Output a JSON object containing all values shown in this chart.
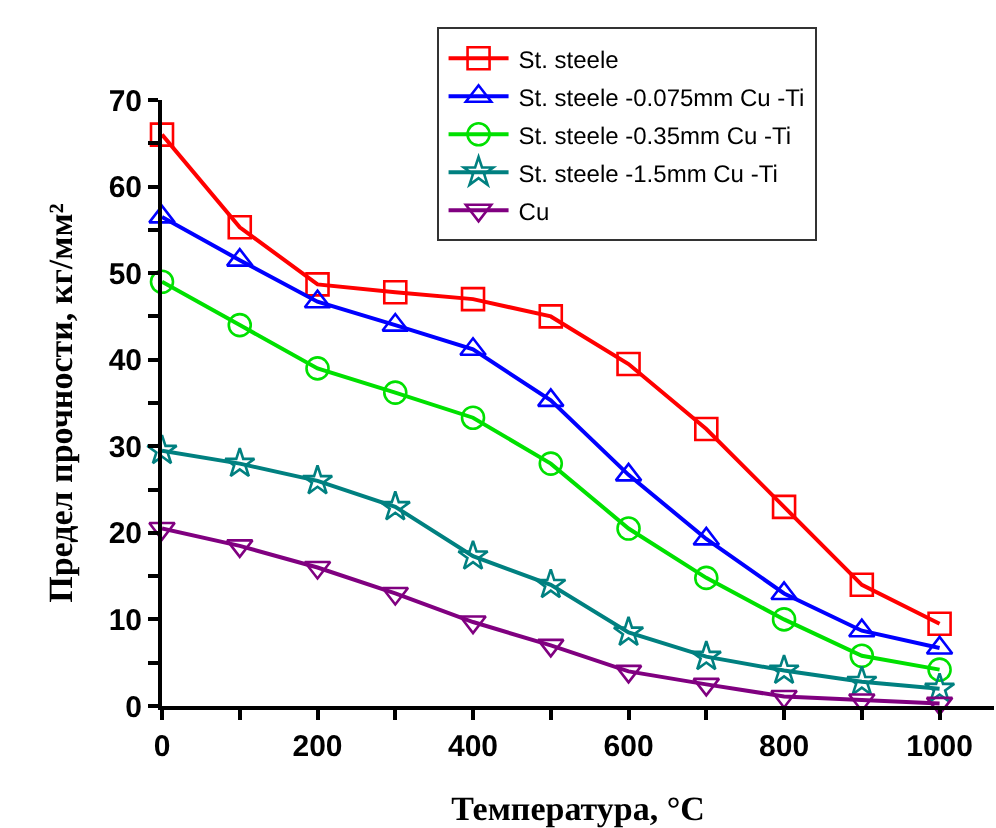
{
  "chart_data": {
    "type": "line",
    "xlabel": "Температура, °C",
    "ylabel": "Предел прочности, кг/мм²",
    "x": [
      0,
      100,
      200,
      300,
      400,
      500,
      600,
      700,
      800,
      900,
      1000
    ],
    "series": [
      {
        "name": "St. steele",
        "color": "#ff0000",
        "marker": "square",
        "values": [
          66,
          55.3,
          48.7,
          47.8,
          47,
          45,
          39.5,
          32,
          23,
          14,
          9.5
        ]
      },
      {
        "name": "St. steele -0.075mm Cu -Ti",
        "color": "#0000ff",
        "marker": "triangle",
        "values": [
          56.5,
          51.5,
          46.7,
          44,
          41.2,
          35.3,
          26.7,
          19.3,
          13,
          8.7,
          6.7
        ]
      },
      {
        "name": "St. steele -0.35mm Cu -Ti",
        "color": "#00e000",
        "marker": "circle",
        "values": [
          49,
          44,
          39,
          36.2,
          33.3,
          28,
          20.5,
          14.8,
          10,
          5.8,
          4.2
        ]
      },
      {
        "name": "St. steele -1.5mm Cu -Ti",
        "color": "#008080",
        "marker": "star",
        "values": [
          29.5,
          28,
          26,
          23,
          17.3,
          14,
          8.5,
          5.7,
          4.1,
          2.8,
          2
        ]
      },
      {
        "name": "Cu",
        "color": "#800080",
        "marker": "triangle-down",
        "values": [
          20.5,
          18.5,
          16,
          13,
          9.7,
          7,
          4,
          2.5,
          1.1,
          0.7,
          0.3
        ]
      }
    ],
    "xlim": [
      0,
      1070
    ],
    "ylim": [
      0,
      70
    ],
    "xticks": [
      0,
      {
        "value": 100,
        "label": null
      },
      200,
      {
        "value": 300,
        "label": null
      },
      400,
      {
        "value": 500,
        "label": null
      },
      600,
      {
        "value": 700,
        "label": null
      },
      800,
      {
        "value": 900,
        "label": null
      },
      1000
    ],
    "yticks": [
      0,
      {
        "value": 5,
        "label": null
      },
      10,
      {
        "value": 15,
        "label": null
      },
      20,
      {
        "value": 25,
        "label": null
      },
      30,
      {
        "value": 35,
        "label": null
      },
      40,
      {
        "value": 45,
        "label": null
      },
      50,
      {
        "value": 55,
        "label": null
      },
      60,
      {
        "value": 65,
        "label": null
      },
      70
    ],
    "grid": false,
    "legend": "top right",
    "line_style": "solid"
  }
}
